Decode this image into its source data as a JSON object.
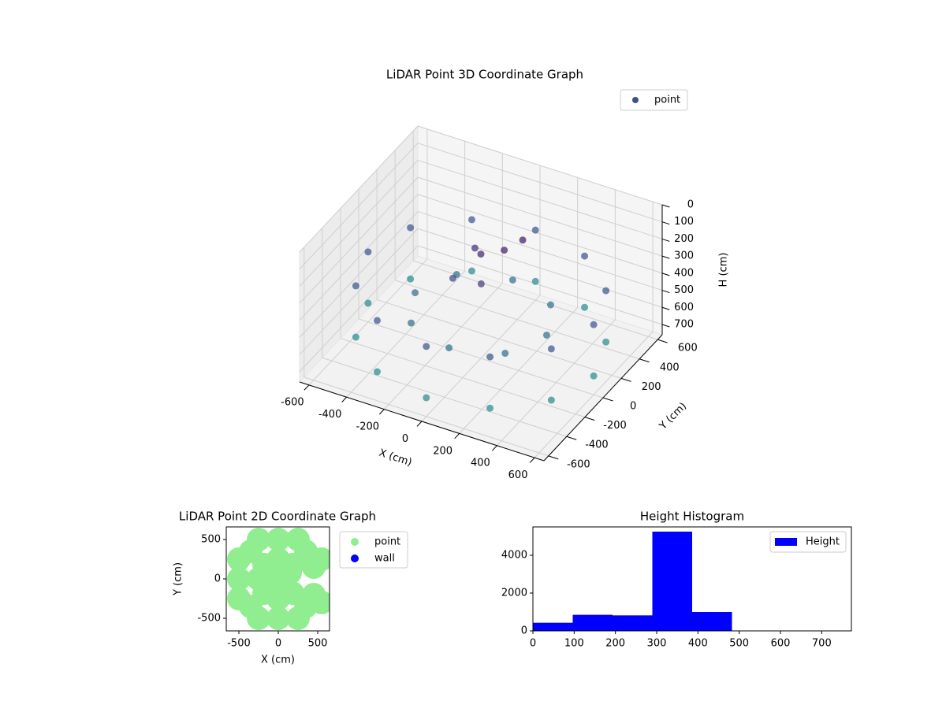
{
  "chart_data": [
    {
      "type": "scatter3d",
      "title": "LiDAR Point 3D Coordinate Graph",
      "x_label": "X (cm)",
      "y_label": "Y (cm)",
      "z_label": "H (cm)",
      "xlim": [
        -650,
        650
      ],
      "ylim": [
        -650,
        650
      ],
      "zlim": [
        760,
        0
      ],
      "xticks": [
        -600,
        -400,
        -200,
        0,
        200,
        400,
        600
      ],
      "yticks": [
        -600,
        -400,
        -200,
        0,
        200,
        400,
        600
      ],
      "zticks": [
        0,
        100,
        200,
        300,
        400,
        500,
        600,
        700
      ],
      "colormap": "viridis",
      "legend": "upper right",
      "grid": true,
      "series": [
        {
          "name": "point",
          "color": "#3b528b",
          "x": [
            600,
            520,
            300,
            0,
            -300,
            -520,
            -600,
            -520,
            -300,
            0,
            300,
            520,
            600,
            520,
            300,
            0,
            -300,
            -520,
            -600,
            -520,
            -300,
            0,
            300,
            520,
            350,
            250,
            0,
            -250,
            -350,
            -250,
            0,
            250,
            0,
            100,
            -80,
            50,
            150,
            -120
          ],
          "y": [
            0,
            300,
            520,
            600,
            520,
            300,
            0,
            -300,
            -520,
            -600,
            -520,
            -300,
            0,
            300,
            520,
            600,
            520,
            300,
            0,
            -300,
            -520,
            -600,
            -520,
            -300,
            0,
            250,
            350,
            250,
            0,
            -250,
            -350,
            -250,
            0,
            50,
            100,
            -100,
            150,
            -60
          ],
          "z": [
            350,
            350,
            350,
            350,
            350,
            350,
            350,
            350,
            350,
            350,
            350,
            350,
            650,
            650,
            650,
            650,
            650,
            650,
            650,
            650,
            650,
            650,
            650,
            650,
            500,
            500,
            500,
            500,
            500,
            500,
            500,
            500,
            150,
            120,
            200,
            250,
            100,
            300
          ]
        }
      ]
    },
    {
      "type": "scatter",
      "title": "LiDAR Point 2D Coordinate Graph",
      "x_label": "X (cm)",
      "y_label": "Y (cm)",
      "xlim": [
        -660,
        650
      ],
      "ylim": [
        -660,
        660
      ],
      "xticks": [
        -500,
        0,
        500
      ],
      "yticks": [
        -500,
        0,
        500
      ],
      "legend": "outside right",
      "series": [
        {
          "name": "point",
          "color": "#90ee90",
          "x": [
            0,
            -250,
            -500,
            0,
            0,
            0,
            0,
            180,
            -180,
            180,
            -180,
            350,
            -350,
            350,
            -350,
            450,
            450,
            550,
            550,
            250,
            -250,
            250,
            -250,
            -500,
            -500,
            150
          ],
          "y": [
            0,
            0,
            0,
            250,
            500,
            -250,
            -500,
            180,
            180,
            -180,
            -180,
            350,
            350,
            -350,
            -350,
            150,
            -200,
            250,
            -300,
            500,
            500,
            -500,
            -500,
            250,
            -250,
            80
          ]
        },
        {
          "name": "wall",
          "color": "#0000ff",
          "x": [],
          "y": []
        }
      ]
    },
    {
      "type": "histogram",
      "title": "Height Histogram",
      "bins": [
        0,
        96.5,
        193,
        289.5,
        386,
        482.5,
        579,
        675.5,
        772
      ],
      "values": [
        430,
        850,
        820,
        5250,
        1000,
        0,
        0,
        0
      ],
      "xlim": [
        0,
        772
      ],
      "ylim": [
        0,
        5500
      ],
      "xticks": [
        0,
        100,
        200,
        300,
        400,
        500,
        600,
        700
      ],
      "yticks": [
        0,
        2000,
        4000
      ],
      "series_name": "Height",
      "color": "#0000ff",
      "legend": "upper right"
    }
  ]
}
